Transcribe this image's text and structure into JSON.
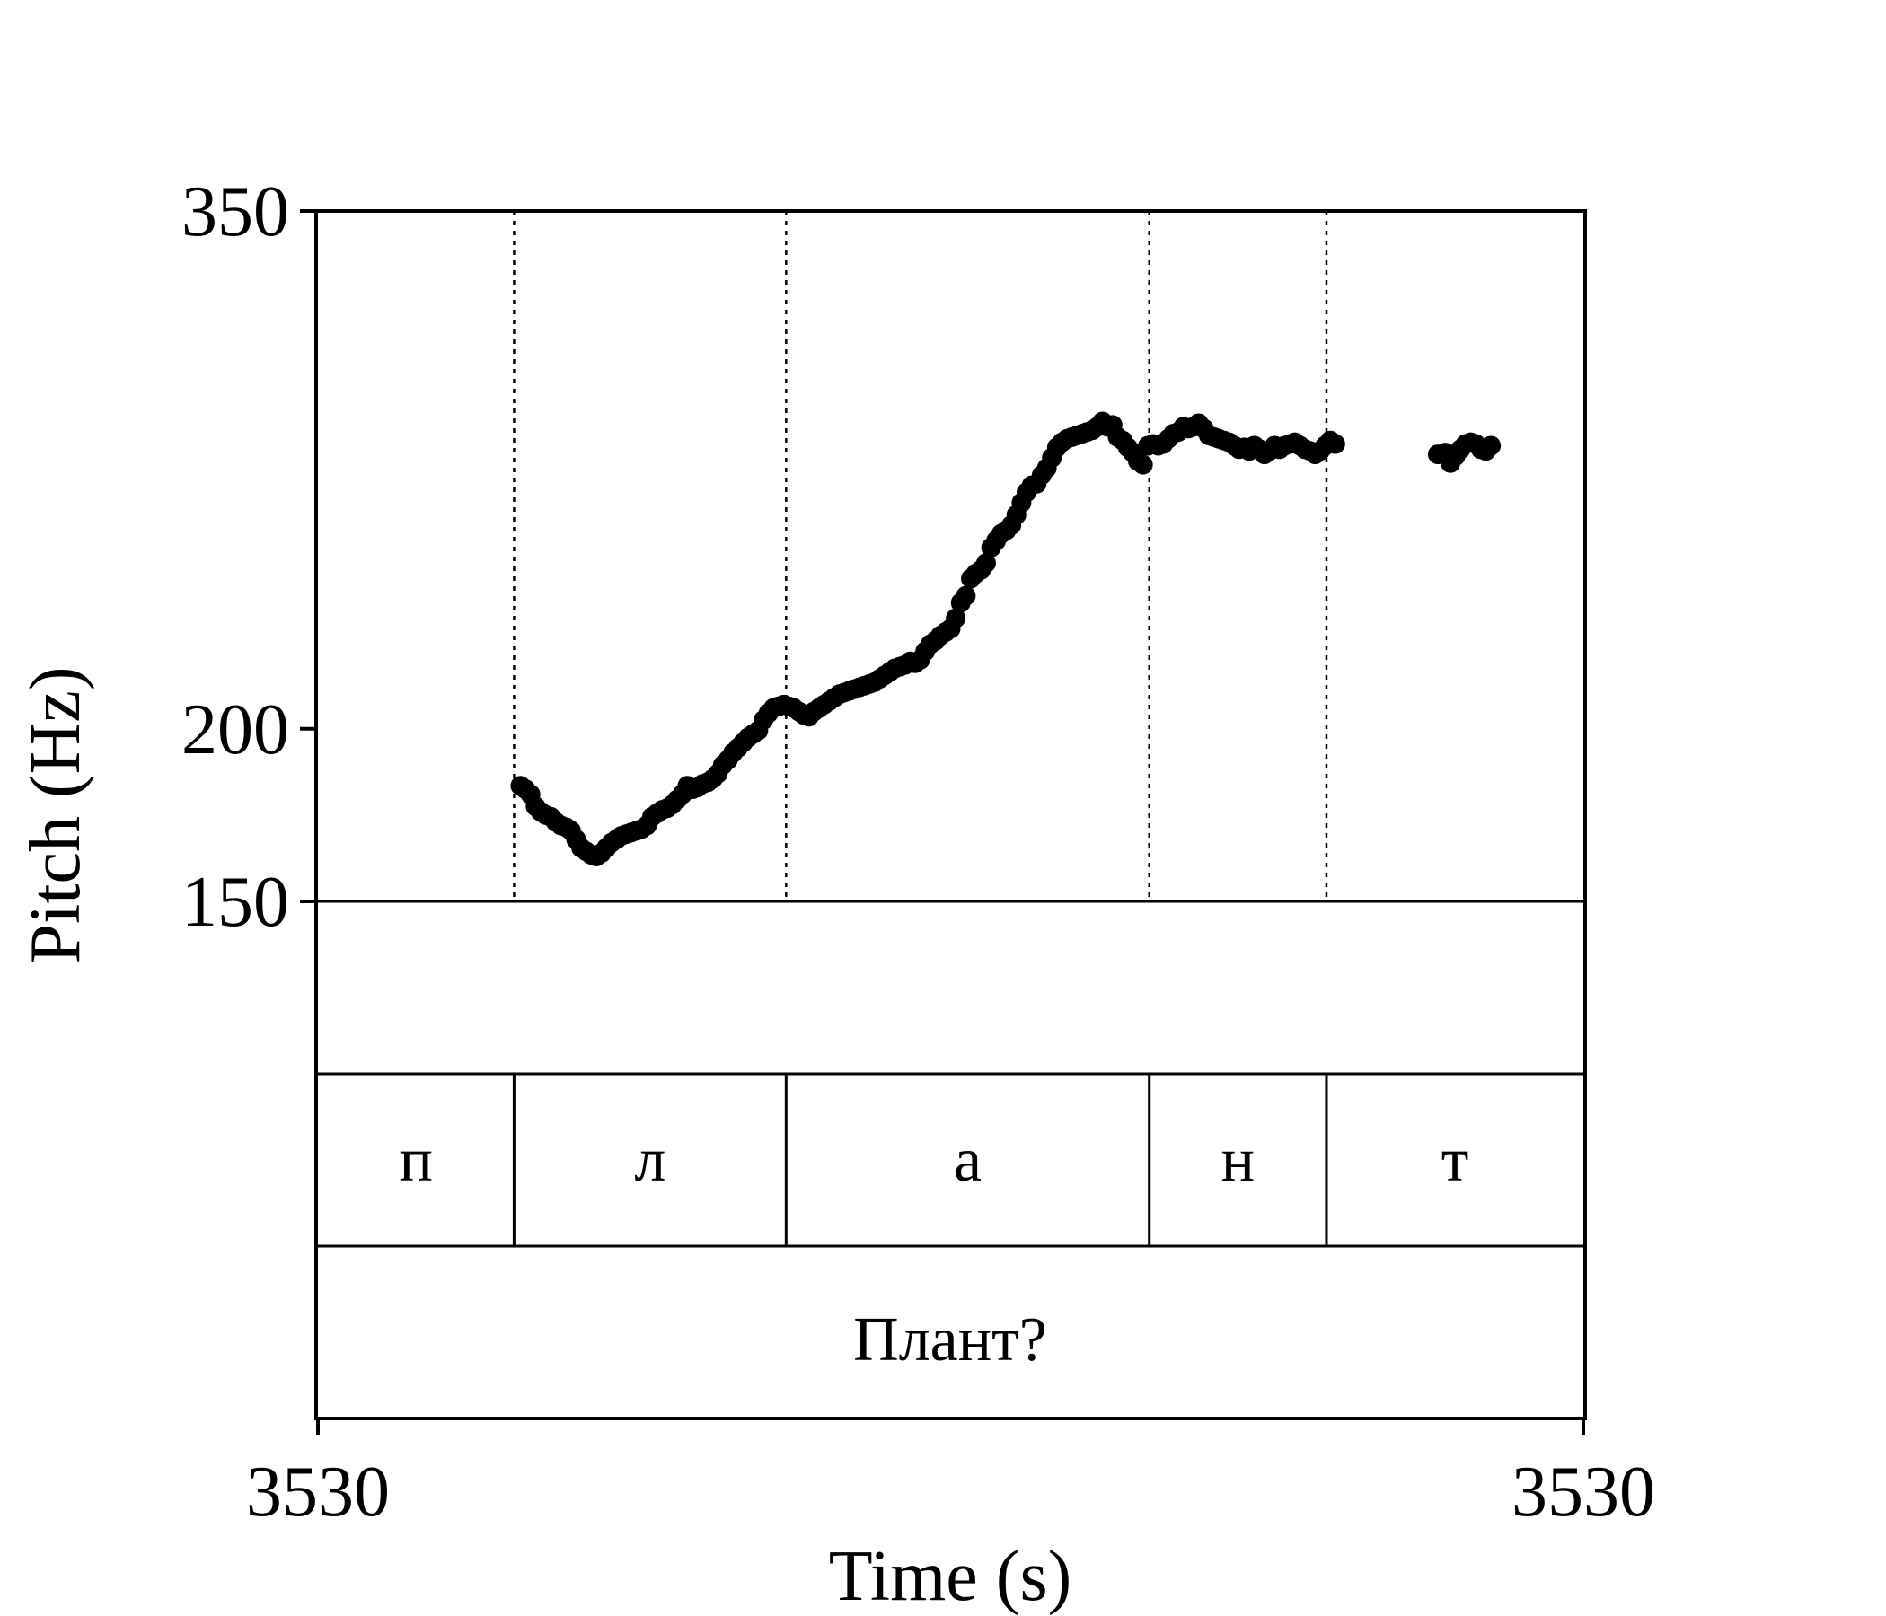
{
  "chart_data": {
    "type": "scatter",
    "xlabel": "Time (s)",
    "ylabel": "Pitch (Hz)",
    "x_tick_labels": [
      "3530",
      "3530"
    ],
    "y_ticks": [
      {
        "value": 150,
        "label": "150"
      },
      {
        "value": 200,
        "label": "200"
      },
      {
        "value": 350,
        "label": "350"
      }
    ],
    "ylim": [
      150,
      350
    ],
    "xlim": [
      0,
      1
    ],
    "segment_boundaries": [
      0.155,
      0.37,
      0.657,
      0.797
    ],
    "segments": [
      {
        "label": "п",
        "start": 0.0,
        "end": 0.155
      },
      {
        "label": "л",
        "start": 0.155,
        "end": 0.37
      },
      {
        "label": "а",
        "start": 0.37,
        "end": 0.657
      },
      {
        "label": "н",
        "start": 0.657,
        "end": 0.797
      },
      {
        "label": "т",
        "start": 0.797,
        "end": 1.0
      }
    ],
    "word_tier": {
      "label": "Плант?",
      "start": 0.0,
      "end": 1.0
    },
    "series": [
      {
        "points": [
          [
            0.16,
            183.5
          ],
          [
            0.164,
            182.5
          ],
          [
            0.168,
            181.0
          ],
          [
            0.172,
            177.5
          ],
          [
            0.176,
            176.0
          ],
          [
            0.18,
            175.0
          ],
          [
            0.184,
            174.5
          ],
          [
            0.188,
            173.0
          ],
          [
            0.192,
            172.0
          ],
          [
            0.196,
            171.5
          ],
          [
            0.2,
            170.5
          ],
          [
            0.204,
            168.0
          ],
          [
            0.208,
            165.5
          ],
          [
            0.212,
            164.5
          ],
          [
            0.216,
            163.5
          ],
          [
            0.22,
            163.0
          ],
          [
            0.224,
            164.0
          ],
          [
            0.228,
            165.5
          ],
          [
            0.232,
            167.0
          ],
          [
            0.236,
            168.0
          ],
          [
            0.24,
            169.0
          ],
          [
            0.244,
            169.5
          ],
          [
            0.248,
            170.0
          ],
          [
            0.252,
            170.5
          ],
          [
            0.256,
            171.0
          ],
          [
            0.26,
            172.0
          ],
          [
            0.264,
            174.5
          ],
          [
            0.268,
            175.5
          ],
          [
            0.272,
            176.5
          ],
          [
            0.276,
            177.0
          ],
          [
            0.28,
            178.0
          ],
          [
            0.284,
            179.5
          ],
          [
            0.288,
            181.0
          ],
          [
            0.292,
            183.5
          ],
          [
            0.296,
            182.5
          ],
          [
            0.3,
            183.0
          ],
          [
            0.304,
            184.0
          ],
          [
            0.308,
            184.5
          ],
          [
            0.312,
            185.5
          ],
          [
            0.316,
            187.0
          ],
          [
            0.32,
            189.5
          ],
          [
            0.324,
            191.0
          ],
          [
            0.328,
            193.0
          ],
          [
            0.332,
            194.5
          ],
          [
            0.336,
            196.0
          ],
          [
            0.34,
            197.5
          ],
          [
            0.344,
            198.5
          ],
          [
            0.348,
            199.5
          ],
          [
            0.352,
            202.5
          ],
          [
            0.356,
            204.5
          ],
          [
            0.36,
            206.0
          ],
          [
            0.364,
            206.5
          ],
          [
            0.368,
            207.0
          ],
          [
            0.372,
            206.5
          ],
          [
            0.376,
            206.0
          ],
          [
            0.38,
            205.0
          ],
          [
            0.384,
            204.0
          ],
          [
            0.388,
            203.5
          ],
          [
            0.392,
            205.0
          ],
          [
            0.396,
            206.0
          ],
          [
            0.4,
            207.0
          ],
          [
            0.404,
            208.0
          ],
          [
            0.408,
            209.0
          ],
          [
            0.412,
            210.0
          ],
          [
            0.416,
            210.5
          ],
          [
            0.42,
            211.0
          ],
          [
            0.424,
            211.5
          ],
          [
            0.428,
            212.0
          ],
          [
            0.432,
            212.5
          ],
          [
            0.436,
            213.0
          ],
          [
            0.44,
            213.5
          ],
          [
            0.444,
            214.5
          ],
          [
            0.448,
            215.5
          ],
          [
            0.452,
            216.5
          ],
          [
            0.456,
            217.5
          ],
          [
            0.46,
            218.0
          ],
          [
            0.464,
            218.5
          ],
          [
            0.468,
            219.5
          ],
          [
            0.472,
            219.0
          ],
          [
            0.476,
            220.0
          ],
          [
            0.48,
            222.5
          ],
          [
            0.484,
            224.5
          ],
          [
            0.488,
            225.5
          ],
          [
            0.492,
            227.0
          ],
          [
            0.496,
            228.0
          ],
          [
            0.5,
            229.0
          ],
          [
            0.504,
            232.0
          ],
          [
            0.508,
            236.5
          ],
          [
            0.512,
            238.5
          ],
          [
            0.516,
            243.5
          ],
          [
            0.52,
            245.0
          ],
          [
            0.524,
            246.0
          ],
          [
            0.528,
            248.0
          ],
          [
            0.532,
            252.5
          ],
          [
            0.536,
            254.5
          ],
          [
            0.54,
            256.5
          ],
          [
            0.544,
            257.5
          ],
          [
            0.548,
            259.0
          ],
          [
            0.552,
            262.0
          ],
          [
            0.556,
            265.5
          ],
          [
            0.56,
            268.5
          ],
          [
            0.564,
            270.5
          ],
          [
            0.568,
            271.0
          ],
          [
            0.572,
            273.5
          ],
          [
            0.576,
            275.5
          ],
          [
            0.58,
            278.5
          ],
          [
            0.584,
            281.5
          ],
          [
            0.588,
            283.0
          ],
          [
            0.592,
            284.0
          ],
          [
            0.596,
            284.5
          ],
          [
            0.6,
            285.0
          ],
          [
            0.604,
            285.5
          ],
          [
            0.608,
            286.0
          ],
          [
            0.612,
            286.5
          ],
          [
            0.616,
            287.5
          ],
          [
            0.62,
            289.0
          ],
          [
            0.624,
            287.5
          ],
          [
            0.628,
            288.0
          ],
          [
            0.632,
            284.5
          ],
          [
            0.636,
            283.5
          ],
          [
            0.64,
            281.5
          ],
          [
            0.644,
            280.0
          ],
          [
            0.648,
            277.5
          ],
          [
            0.652,
            276.5
          ],
          [
            0.656,
            282.0
          ],
          [
            0.66,
            282.5
          ],
          [
            0.664,
            282.0
          ],
          [
            0.668,
            282.5
          ],
          [
            0.672,
            284.0
          ],
          [
            0.676,
            285.5
          ],
          [
            0.68,
            286.0
          ],
          [
            0.684,
            287.5
          ],
          [
            0.688,
            287.0
          ],
          [
            0.692,
            287.5
          ],
          [
            0.696,
            288.5
          ],
          [
            0.7,
            287.0
          ],
          [
            0.704,
            285.0
          ],
          [
            0.708,
            284.5
          ],
          [
            0.712,
            284.0
          ],
          [
            0.716,
            283.5
          ],
          [
            0.72,
            283.0
          ],
          [
            0.724,
            282.0
          ],
          [
            0.728,
            281.0
          ],
          [
            0.732,
            281.5
          ],
          [
            0.736,
            280.5
          ],
          [
            0.74,
            282.0
          ],
          [
            0.744,
            281.0
          ],
          [
            0.748,
            279.5
          ],
          [
            0.752,
            280.5
          ],
          [
            0.756,
            282.0
          ],
          [
            0.76,
            281.0
          ],
          [
            0.764,
            282.0
          ],
          [
            0.768,
            282.5
          ],
          [
            0.772,
            283.0
          ],
          [
            0.776,
            282.0
          ],
          [
            0.78,
            281.0
          ],
          [
            0.784,
            280.5
          ],
          [
            0.788,
            279.5
          ],
          [
            0.792,
            280.5
          ],
          [
            0.796,
            282.0
          ],
          [
            0.8,
            283.5
          ],
          [
            0.804,
            282.5
          ],
          [
            0.885,
            279.5
          ],
          [
            0.891,
            280.0
          ],
          [
            0.895,
            277.0
          ],
          [
            0.899,
            279.0
          ],
          [
            0.903,
            281.0
          ],
          [
            0.907,
            282.5
          ],
          [
            0.911,
            283.0
          ],
          [
            0.915,
            282.5
          ],
          [
            0.919,
            281.0
          ],
          [
            0.923,
            280.5
          ],
          [
            0.927,
            282.0
          ]
        ]
      }
    ]
  }
}
